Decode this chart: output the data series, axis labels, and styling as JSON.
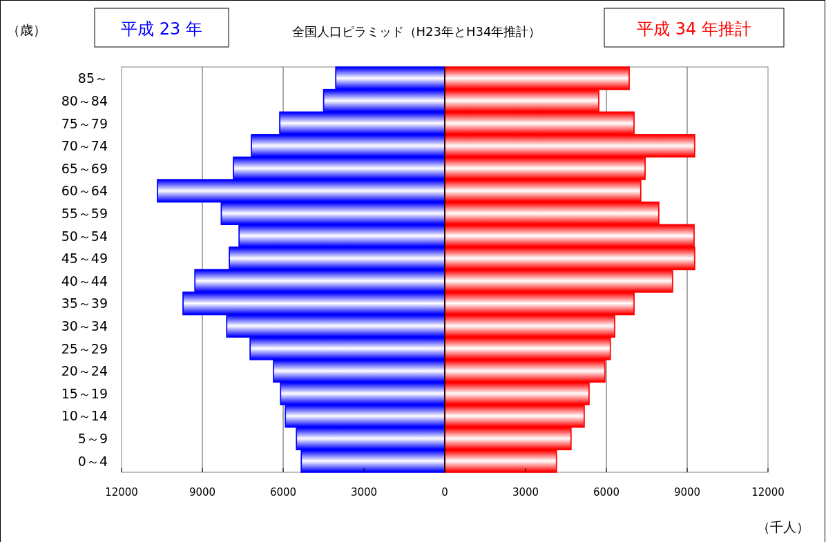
{
  "chart_data": {
    "type": "bar",
    "orientation": "horizontal",
    "title": "全国人口ピラミッド（H23年とH34年推計）",
    "ylabel": "（歳）",
    "xlabel": "（千人）",
    "categories": [
      "85～",
      "80～84",
      "75～79",
      "70～74",
      "65～69",
      "60～64",
      "55～59",
      "50～54",
      "45～49",
      "40～44",
      "35～39",
      "30～34",
      "25～29",
      "20～24",
      "15～19",
      "10～14",
      "5～9",
      "0～4"
    ],
    "series": [
      {
        "name": "平成 23 年",
        "color": "#0000ff",
        "values": [
          -4050,
          -4500,
          -6130,
          -7180,
          -7850,
          -10670,
          -8300,
          -7640,
          -8000,
          -9280,
          -9720,
          -8100,
          -7230,
          -6360,
          -6100,
          -5920,
          -5510,
          -5330
        ]
      },
      {
        "name": "平成 34 年推計",
        "color": "#ff0000",
        "values": [
          6850,
          5720,
          7030,
          9280,
          7440,
          7280,
          7950,
          9260,
          9280,
          8460,
          7030,
          6310,
          6150,
          5950,
          5360,
          5180,
          4690,
          4150
        ]
      }
    ],
    "xlim": [
      -12000,
      12000
    ],
    "xticks": [
      {
        "value": -12000,
        "label": "12000"
      },
      {
        "value": -9000,
        "label": "9000"
      },
      {
        "value": -6000,
        "label": "6000"
      },
      {
        "value": -3000,
        "label": "3000"
      },
      0,
      3000,
      6000,
      9000,
      12000
    ],
    "ref_lines": [
      {
        "axis": "x",
        "value": -9000,
        "color": "#555555"
      },
      {
        "axis": "x",
        "value": -6000,
        "color": "#555555"
      },
      {
        "axis": "x",
        "value": 0,
        "color": "#000000"
      },
      {
        "axis": "x",
        "value": 6000,
        "color": "#555555"
      },
      {
        "axis": "x",
        "value": 9000,
        "color": "#555555"
      }
    ],
    "legend": "top",
    "stacked": true
  }
}
